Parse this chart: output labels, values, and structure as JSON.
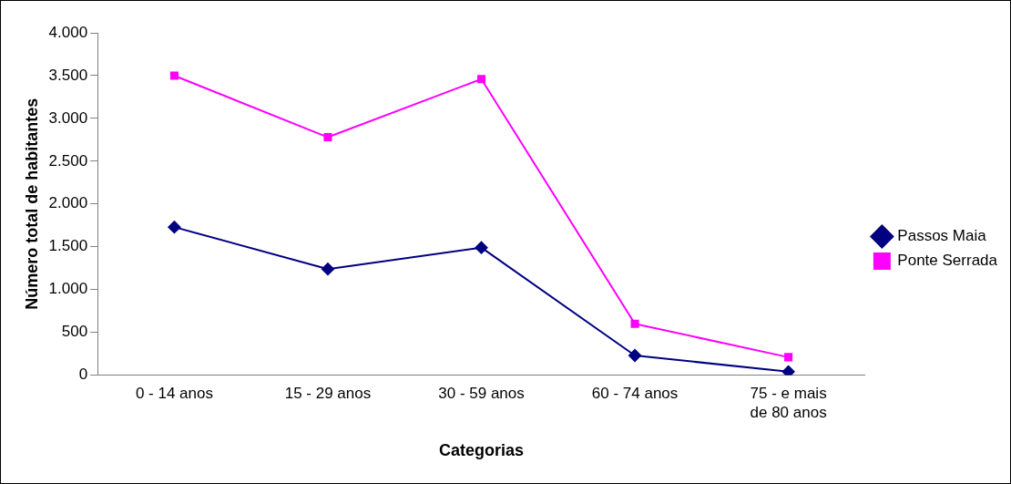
{
  "chart_data": {
    "type": "line",
    "xlabel": "Categorias",
    "ylabel": "Número total de habitantes",
    "categories": [
      "0 - 14 anos",
      "15 - 29 anos",
      "30 - 59 anos",
      "60 - 74 anos",
      "75 - e mais de 80 anos"
    ],
    "series": [
      {
        "name": "Passos Maia",
        "color": "#000080",
        "marker": "diamond",
        "values": [
          1730,
          1240,
          1490,
          230,
          40
        ]
      },
      {
        "name": "Ponte Serrada",
        "color": "#ff00ff",
        "marker": "square",
        "values": [
          3500,
          2780,
          3460,
          600,
          210
        ]
      }
    ],
    "ylim": [
      0,
      4000
    ],
    "yticks": [
      0,
      {
        "value": 500,
        "label": "500"
      },
      {
        "value": 1000,
        "label": "1.000"
      },
      {
        "value": 1500,
        "label": "1.500"
      },
      {
        "value": 2000,
        "label": "2.000"
      },
      {
        "value": 2500,
        "label": "2.500"
      },
      {
        "value": 3000,
        "label": "3.000"
      },
      {
        "value": 3500,
        "label": "3.500"
      },
      {
        "value": 4000,
        "label": "4.000"
      }
    ],
    "grid": false,
    "legend": "right",
    "line_style": "solid"
  }
}
